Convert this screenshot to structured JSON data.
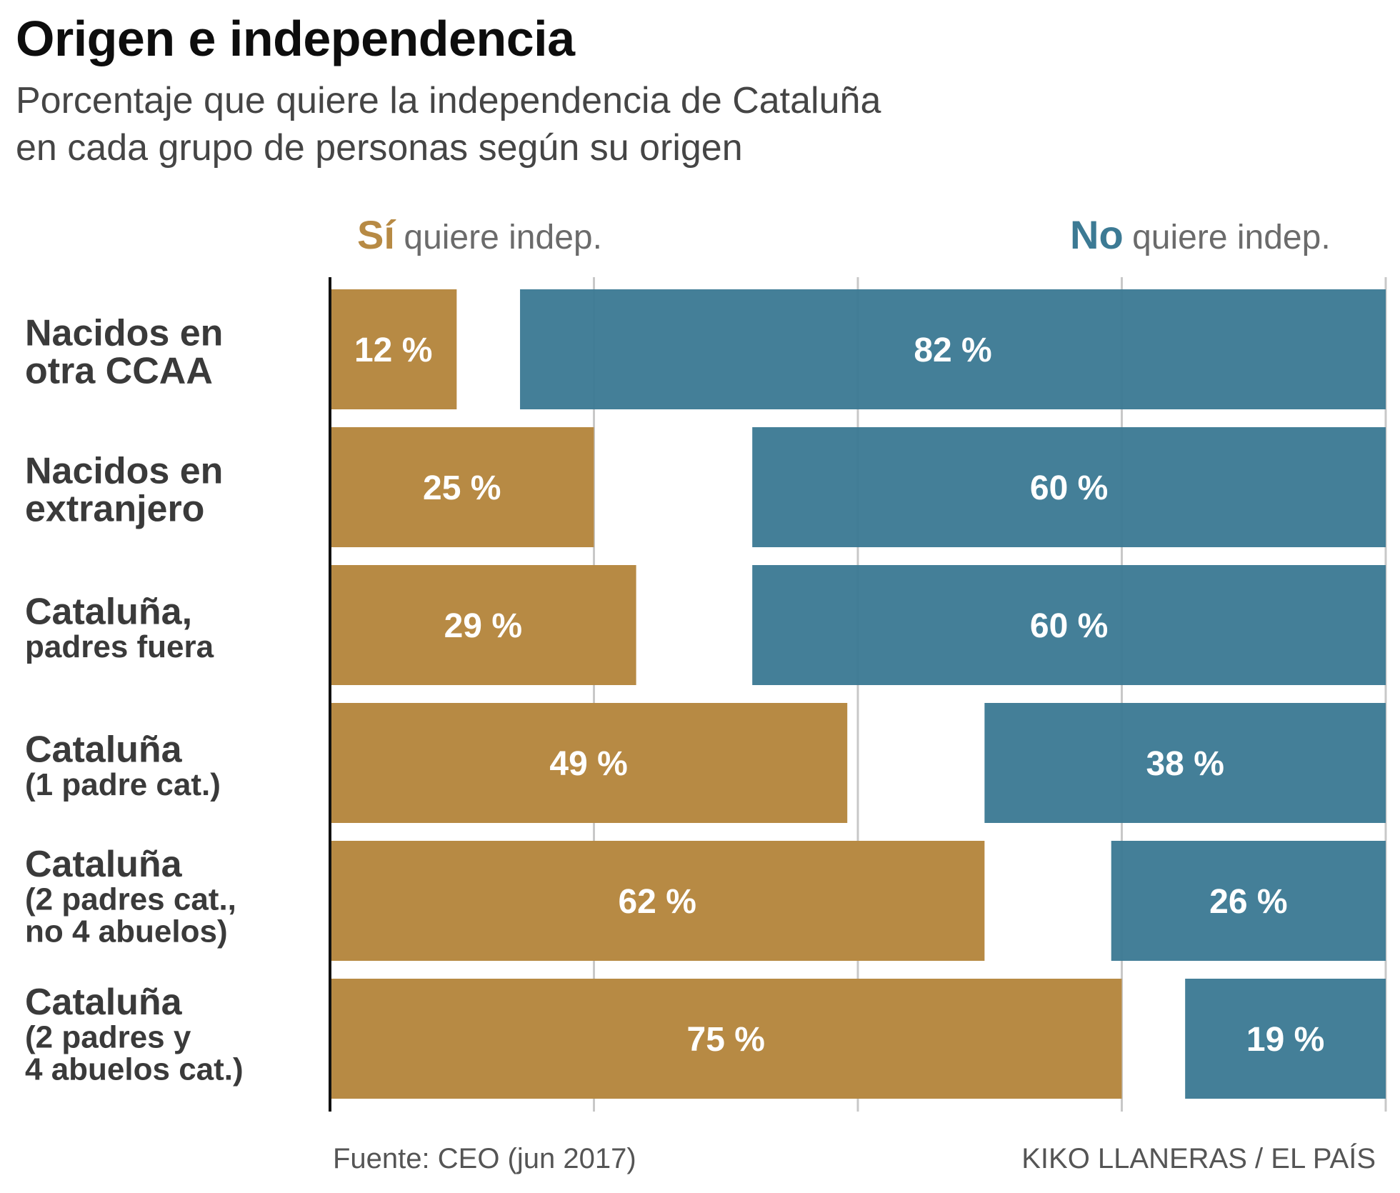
{
  "title": "Origen e independencia",
  "subtitle_lines": [
    "Porcentaje que quiere la independencia de Cataluña",
    "en cada grupo de personas según su origen"
  ],
  "footer": {
    "source": "Fuente: CEO (jun 2017)",
    "credit": "KIKO LLANERAS / EL PAÍS"
  },
  "colors": {
    "yes": "#b78a44",
    "no": "#3c7a94",
    "grid": "#c8c8c8",
    "axis": "#111111"
  },
  "chart_data": {
    "type": "bar",
    "orientation": "horizontal",
    "xlim": [
      0,
      100
    ],
    "grid": true,
    "legend": {
      "yes": {
        "strong": "Sí",
        "rest": "quiere indep."
      },
      "no": {
        "strong": "No",
        "rest": "quiere indep."
      }
    },
    "categories": [
      {
        "lines": [
          "Nacidos en",
          "otra CCAA"
        ]
      },
      {
        "lines": [
          "Nacidos en",
          "extranjero"
        ]
      },
      {
        "lines": [
          "Cataluña,",
          "padres fuera"
        ]
      },
      {
        "lines": [
          "Cataluña",
          "(1 padre cat.)"
        ]
      },
      {
        "lines": [
          "Cataluña",
          "(2 padres cat.,",
          "no 4 abuelos)"
        ]
      },
      {
        "lines": [
          "Cataluña",
          "(2 padres y",
          "4 abuelos cat.)"
        ]
      }
    ],
    "series": [
      {
        "key": "yes",
        "values": [
          12,
          25,
          29,
          49,
          62,
          75
        ],
        "labels": [
          "12 %",
          "25 %",
          "29 %",
          "49 %",
          "62 %",
          "75 %"
        ]
      },
      {
        "key": "no",
        "values": [
          82,
          60,
          60,
          38,
          26,
          19
        ],
        "labels": [
          "82 %",
          "60 %",
          "60 %",
          "38 %",
          "26 %",
          "19 %"
        ]
      }
    ]
  }
}
